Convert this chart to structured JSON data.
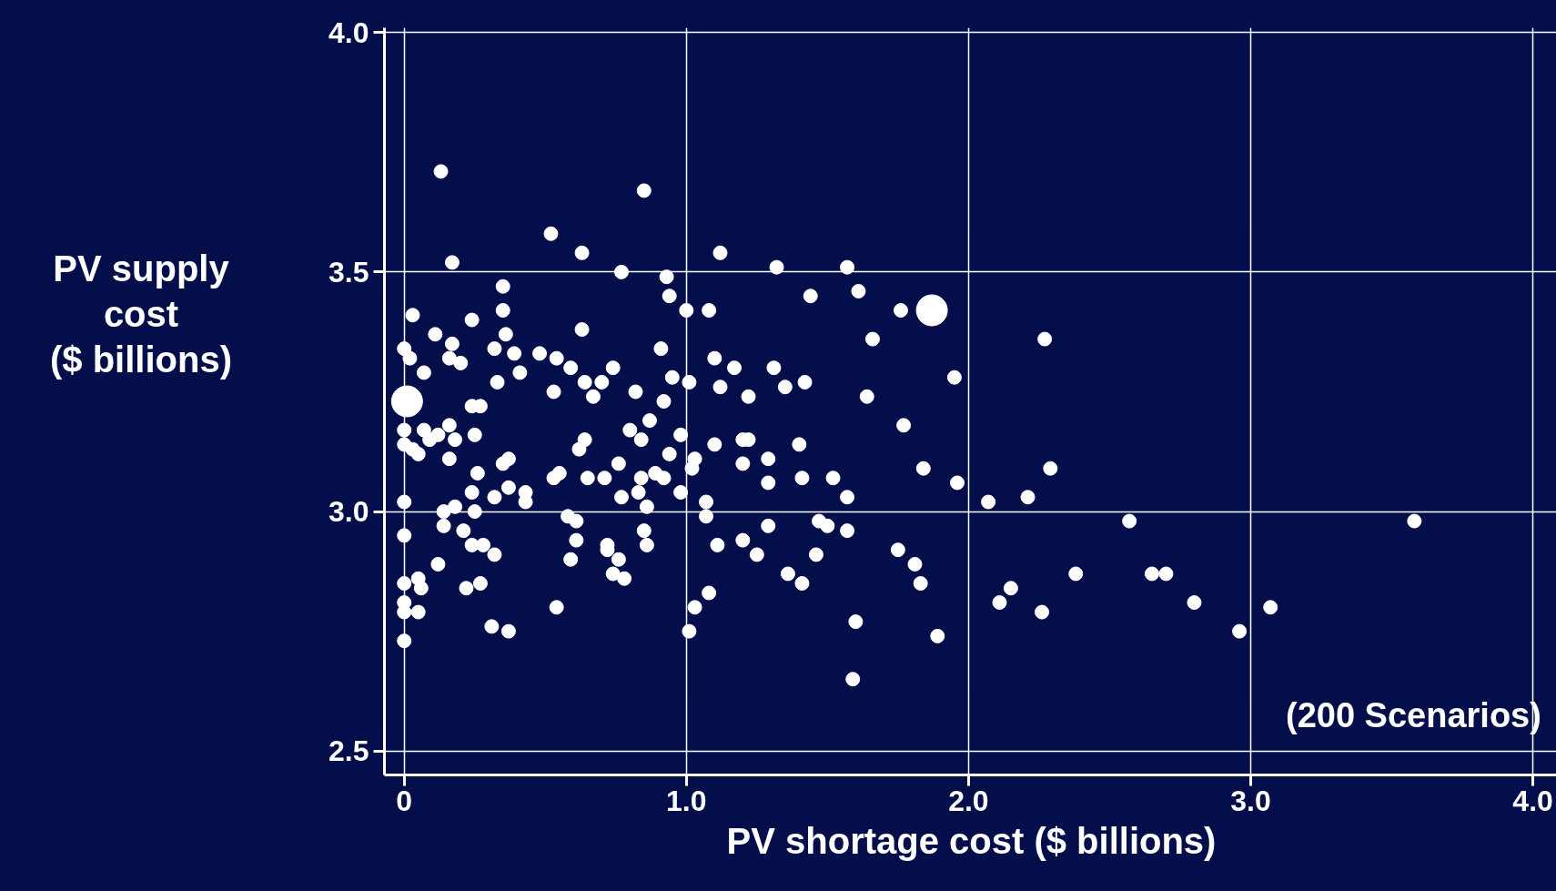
{
  "chart_data": {
    "type": "scatter",
    "xlabel": "PV shortage cost ($ billions)",
    "ylabel": "PV supply\ncost\n($ billions)",
    "annotations": [
      "(200 Scenarios)"
    ],
    "xlim": [
      -0.07,
      4.09
    ],
    "ylim": [
      2.45,
      4.01
    ],
    "xticks": [
      {
        "value": 0,
        "label": "0"
      },
      {
        "value": 1,
        "label": "1.0"
      },
      {
        "value": 2,
        "label": "2.0"
      },
      {
        "value": 3,
        "label": "3.0"
      },
      {
        "value": 4,
        "label": "4.0"
      }
    ],
    "yticks": [
      {
        "value": 2.5,
        "label": "2.5"
      },
      {
        "value": 3,
        "label": "3.0"
      },
      {
        "value": 3.5,
        "label": "3.5"
      },
      {
        "value": 4,
        "label": "4.0"
      }
    ],
    "grid": true,
    "marker": "circle",
    "series": [
      {
        "color": "#ffffff",
        "x": [
          0.13,
          0.85,
          0.52,
          0.63,
          1.12,
          0.17,
          0.77,
          1.32,
          1.57,
          0.93,
          0.94,
          1.44,
          1.61,
          0.35,
          0.35,
          0.03,
          1.0,
          1.08,
          1.76,
          0.24,
          0.63,
          0.11,
          0.36,
          0.17,
          0.32,
          1.66,
          2.27,
          0.91,
          0.0,
          0.02,
          0.39,
          0.48,
          0.54,
          0.16,
          0.2,
          0.59,
          0.74,
          0.95,
          1.1,
          1.17,
          1.31,
          0.07,
          0.41,
          0.33,
          0.64,
          0.7,
          1.01,
          1.12,
          1.35,
          1.42,
          1.95,
          0.53,
          0.82,
          1.22,
          0.67,
          1.64,
          0.24,
          0.92,
          0.27,
          0.87,
          1.77,
          0.0,
          0.07,
          0.16,
          0.12,
          0.09,
          0.25,
          0.18,
          0.0,
          0.03,
          0.64,
          0.8,
          0.98,
          1.2,
          1.22,
          1.1,
          1.4,
          0.84,
          0.05,
          0.62,
          0.37,
          0.94,
          1.03,
          1.29,
          0.16,
          0.35,
          0.76,
          1.2,
          1.84,
          2.29,
          1.02,
          0.89,
          0.84,
          0.92,
          0.53,
          0.55,
          0.65,
          0.71,
          0.26,
          1.29,
          1.41,
          1.52,
          1.96,
          0.37,
          0.43,
          0.83,
          0.24,
          0.32,
          0.98,
          0.77,
          2.21,
          1.57,
          0.43,
          0.0,
          1.07,
          0.86,
          2.07,
          0.18,
          0.14,
          0.25,
          0.58,
          0.61,
          1.07,
          1.47,
          1.5,
          2.57,
          3.58,
          0.14,
          1.29,
          0.21,
          0.85,
          1.57,
          0.0,
          0.61,
          1.2,
          0.72,
          0.24,
          0.28,
          0.86,
          1.11,
          0.72,
          1.75,
          0.32,
          1.25,
          1.46,
          0.59,
          0.76,
          1.81,
          0.12,
          2.38,
          1.36,
          2.65,
          2.7,
          0.05,
          0.0,
          0.74,
          0.78,
          0.27,
          1.83,
          1.41,
          0.06,
          0.22,
          2.15,
          1.08,
          2.8,
          2.11,
          0.0,
          0.0,
          0.05,
          0.54,
          1.03,
          2.26,
          3.07,
          1.6,
          0.31,
          0.37,
          1.01,
          1.89,
          2.96,
          0.0,
          1.59
        ],
        "values": [
          3.71,
          3.67,
          3.58,
          3.54,
          3.54,
          3.52,
          3.5,
          3.51,
          3.51,
          3.49,
          3.45,
          3.45,
          3.46,
          3.47,
          3.42,
          3.41,
          3.42,
          3.42,
          3.42,
          3.4,
          3.38,
          3.37,
          3.37,
          3.35,
          3.34,
          3.36,
          3.36,
          3.34,
          3.34,
          3.32,
          3.33,
          3.33,
          3.32,
          3.32,
          3.31,
          3.3,
          3.3,
          3.28,
          3.32,
          3.3,
          3.3,
          3.29,
          3.29,
          3.27,
          3.27,
          3.27,
          3.27,
          3.26,
          3.26,
          3.27,
          3.28,
          3.25,
          3.25,
          3.24,
          3.24,
          3.24,
          3.22,
          3.23,
          3.22,
          3.19,
          3.18,
          3.17,
          3.17,
          3.18,
          3.16,
          3.15,
          3.16,
          3.15,
          3.14,
          3.13,
          3.15,
          3.17,
          3.16,
          3.15,
          3.15,
          3.14,
          3.14,
          3.15,
          3.12,
          3.13,
          3.11,
          3.12,
          3.11,
          3.11,
          3.11,
          3.1,
          3.1,
          3.1,
          3.09,
          3.09,
          3.09,
          3.08,
          3.07,
          3.07,
          3.07,
          3.08,
          3.07,
          3.07,
          3.08,
          3.06,
          3.07,
          3.07,
          3.06,
          3.05,
          3.04,
          3.04,
          3.04,
          3.03,
          3.04,
          3.03,
          3.03,
          3.03,
          3.02,
          3.02,
          3.02,
          3.01,
          3.02,
          3.01,
          3.0,
          3.0,
          2.99,
          2.98,
          2.99,
          2.98,
          2.97,
          2.98,
          2.98,
          2.97,
          2.97,
          2.96,
          2.96,
          2.96,
          2.95,
          2.94,
          2.94,
          2.93,
          2.93,
          2.93,
          2.93,
          2.93,
          2.92,
          2.92,
          2.91,
          2.91,
          2.91,
          2.9,
          2.9,
          2.89,
          2.89,
          2.87,
          2.87,
          2.87,
          2.87,
          2.86,
          2.85,
          2.87,
          2.86,
          2.85,
          2.85,
          2.85,
          2.84,
          2.84,
          2.84,
          2.83,
          2.81,
          2.81,
          2.81,
          2.79,
          2.79,
          2.8,
          2.8,
          2.79,
          2.8,
          2.77,
          2.76,
          2.75,
          2.75,
          2.74,
          2.75,
          2.73,
          2.65
        ]
      },
      {
        "type": "bubble",
        "color": "#ffffff",
        "x": [
          0.01,
          1.87
        ],
        "values": [
          3.23,
          3.42
        ],
        "sizes": [
          1,
          1
        ]
      }
    ]
  }
}
